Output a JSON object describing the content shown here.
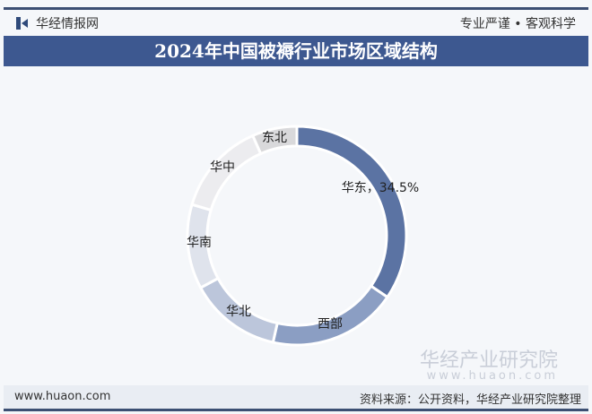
{
  "header": {
    "brand": "华经情报网",
    "slogan": "专业严谨 • 客观科学",
    "title": "2024年中国被褥行业市场区域结构"
  },
  "watermark": {
    "name": "华经产业研究院",
    "url": "www.huaon.com"
  },
  "footer": {
    "site": "www.huaon.com",
    "source": "资料来源：公开资料，华经产业研究院整理"
  },
  "chart_data": {
    "type": "pie",
    "donut": true,
    "title": "2024年中国被褥行业市场区域结构",
    "categories": [
      "华东",
      "西部",
      "华北",
      "华南",
      "华中",
      "东北"
    ],
    "values": [
      34.5,
      19.0,
      13.6,
      12.5,
      13.8,
      6.6
    ],
    "unit": "%",
    "labels": [
      "华东，34.5%",
      "西部",
      "华北",
      "华南",
      "华中",
      "东北"
    ],
    "colors": [
      "#5b73a3",
      "#8b9ec3",
      "#bcc6db",
      "#dfe3ec",
      "#ececef",
      "#d9d9db"
    ]
  }
}
